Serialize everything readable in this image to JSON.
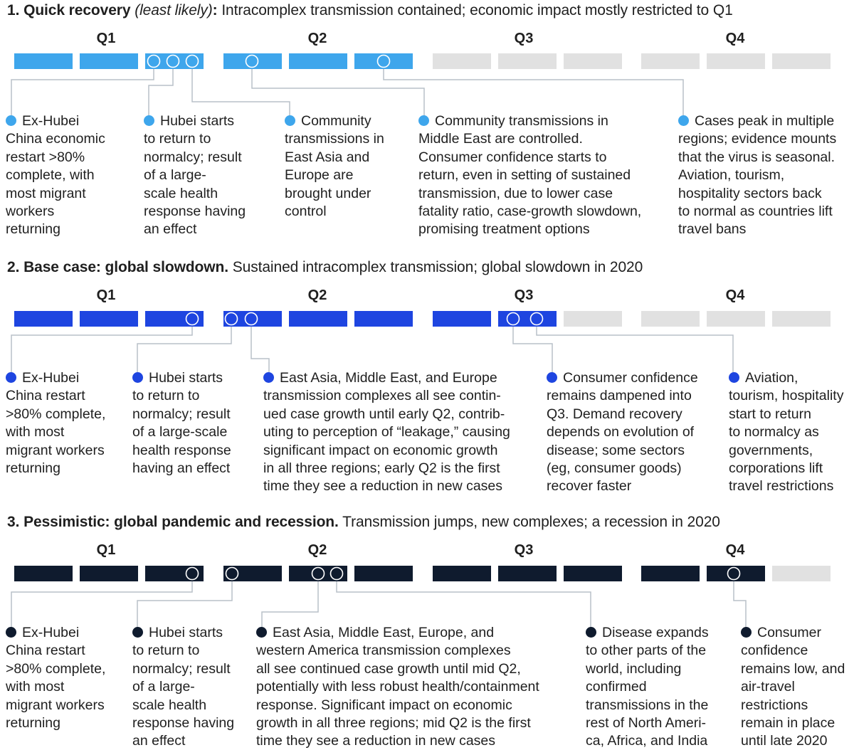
{
  "colors": {
    "scenario1": "#3ea6ec",
    "scenario2": "#1e45e0",
    "scenario3": "#0f1b2e",
    "inactive": "#e1e1e1",
    "connector": "#b9c0c8"
  },
  "quarter_labels": [
    "Q1",
    "Q2",
    "Q3",
    "Q4"
  ],
  "scenarios": [
    {
      "number": "1.",
      "title": "Quick recovery",
      "qualifier": "(least likely)",
      "title_suffix": ":",
      "description": "Intracomplex transmission contained; economic impact mostly restricted to Q1",
      "active_segments": 6,
      "notes": [
        [
          "Ex-Hubei",
          "China economic",
          "restart >80%",
          "complete, with",
          "most migrant",
          "workers",
          "returning"
        ],
        [
          "Hubei starts",
          "to return to",
          "normalcy; result",
          "of a large-",
          "scale health",
          "response having",
          "an effect"
        ],
        [
          "Community",
          "transmissions in",
          "East Asia and",
          "Europe are",
          "brought under",
          "control"
        ],
        [
          "Community transmissions in",
          "Middle East are controlled.",
          "Consumer confidence starts to",
          "return, even in setting of sustained",
          "transmission, due to lower case",
          "fatality ratio, case-growth slowdown,",
          "promising treatment options"
        ],
        [
          "Cases peak in multiple",
          "regions; evidence mounts",
          "that the virus is seasonal.",
          "Aviation, tourism,",
          "hospitality sectors back",
          "to normal as countries lift",
          "travel bans"
        ]
      ]
    },
    {
      "number": "2.",
      "title": "Base case: global slowdown.",
      "qualifier": "",
      "title_suffix": "",
      "description": "Sustained intracomplex transmission; global slowdown in 2020",
      "active_segments": 8,
      "notes": [
        [
          "Ex-Hubei",
          "China restart",
          ">80% complete,",
          "with most",
          "migrant workers",
          "returning"
        ],
        [
          "Hubei starts",
          "to return to",
          "normalcy; result",
          "of a large-scale",
          "health response",
          "having an effect"
        ],
        [
          "East Asia, Middle East, and Europe",
          "transmission complexes all see contin-",
          "ued case growth until early Q2, contrib-",
          "uting to perception of “leakage,” causing",
          "significant impact on economic growth",
          "in all three regions; early Q2 is the first",
          "time they see a reduction in new cases"
        ],
        [
          "Consumer confidence",
          "remains dampened into",
          "Q3. Demand recovery",
          "depends on evolution of",
          "disease; some sectors",
          "(eg, consumer goods)",
          "recover faster"
        ],
        [
          "Aviation,",
          "tourism, hospitality",
          "start to return",
          "to normalcy as",
          "governments,",
          "corporations lift",
          "travel restrictions"
        ]
      ]
    },
    {
      "number": "3.",
      "title": "Pessimistic: global pandemic and recession.",
      "qualifier": "",
      "title_suffix": "",
      "description": "Transmission jumps, new complexes; a recession in 2020",
      "active_segments": 11,
      "notes": [
        [
          "Ex-Hubei",
          "China restart",
          ">80% complete,",
          "with most",
          "migrant workers",
          "returning"
        ],
        [
          "Hubei starts",
          "to return to",
          "normalcy; result",
          "of a large-",
          "scale health",
          "response having",
          "an effect"
        ],
        [
          "East Asia, Middle East, Europe, and",
          "western America transmission complexes",
          "all see continued case growth until mid Q2,",
          "potentially with less robust health/containment",
          "response. Significant impact on economic",
          "growth in all three regions; mid Q2 is the first",
          "time they see a reduction in new cases"
        ],
        [
          "Disease expands",
          "to other parts of the",
          "world, including",
          "confirmed",
          "transmissions in the",
          "rest of North Ameri-",
          "ca, Africa, and India"
        ],
        [
          "Consumer",
          "confidence",
          "remains low, and",
          "air-travel",
          "restrictions",
          "remain in place",
          "until late 2020"
        ]
      ]
    }
  ]
}
